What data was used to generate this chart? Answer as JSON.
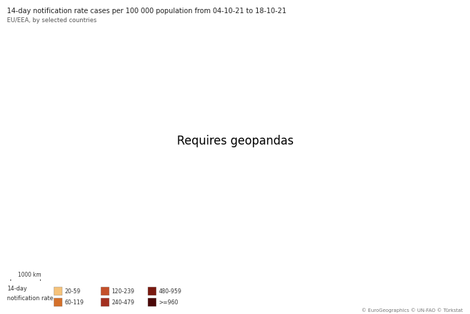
{
  "title": "14-day notification rate cases per 100 000 population from 04-10-21 to 18-10-21",
  "subtitle": "EU/EEA, by selected countries",
  "copyright": "© EuroGeographics © UN-FAO © Türkstat",
  "legend_labels": [
    "20-59",
    "60-119",
    "120-239",
    "240-479",
    "480-959",
    ">=960"
  ],
  "legend_colors": [
    "#f5c27a",
    "#d4702a",
    "#c4502a",
    "#a33020",
    "#7a1a10",
    "#4a0808"
  ],
  "no_data_color": "#cccccc",
  "non_eu_color": "#d9d9d9",
  "border_color": "#999999",
  "ocean_color": "#ffffff",
  "country_colors": {
    "Norway": "#d4702a",
    "Sweden": "#d4702a",
    "Finland": "#d4702a",
    "Denmark": "#c4502a",
    "Iceland": "#c4502a",
    "Estonia": "#c4502a",
    "Latvia": "#7a1a10",
    "Lithuania": "#7a1a10",
    "Ireland": "#7a1a10",
    "United Kingdom": "#c4502a",
    "Netherlands": "#c4502a",
    "Belgium": "#c4502a",
    "Luxembourg": "#c4502a",
    "Germany": "#c4502a",
    "Poland": "#d4702a",
    "Czech Republic": "#c4502a",
    "Czechia": "#c4502a",
    "Slovakia": "#c4502a",
    "Austria": "#c4502a",
    "Switzerland": "#c4502a",
    "France": "#d4702a",
    "Portugal": "#d4702a",
    "Spain": "#cccccc",
    "Italy": "#d4702a",
    "Slovenia": "#c4502a",
    "Croatia": "#c4502a",
    "Hungary": "#d4702a",
    "Romania": "#7a1a10",
    "Bulgaria": "#a33020",
    "Greece": "#c4502a",
    "Cyprus": "#c4502a",
    "Malta": "#d4702a",
    "Serbia": "#d4702a",
    "Bosnia and Herz.": "#a33020",
    "Bosnia and Herzegovina": "#a33020",
    "North Macedonia": "#c4502a",
    "Macedonia": "#c4502a",
    "Albania": "#d4702a",
    "Montenegro": "#c4502a",
    "Kosovo": "#d4702a"
  },
  "map_xlim": [
    -25,
    50
  ],
  "map_ylim": [
    34,
    72
  ],
  "figsize": [
    6.8,
    4.54
  ],
  "dpi": 100
}
